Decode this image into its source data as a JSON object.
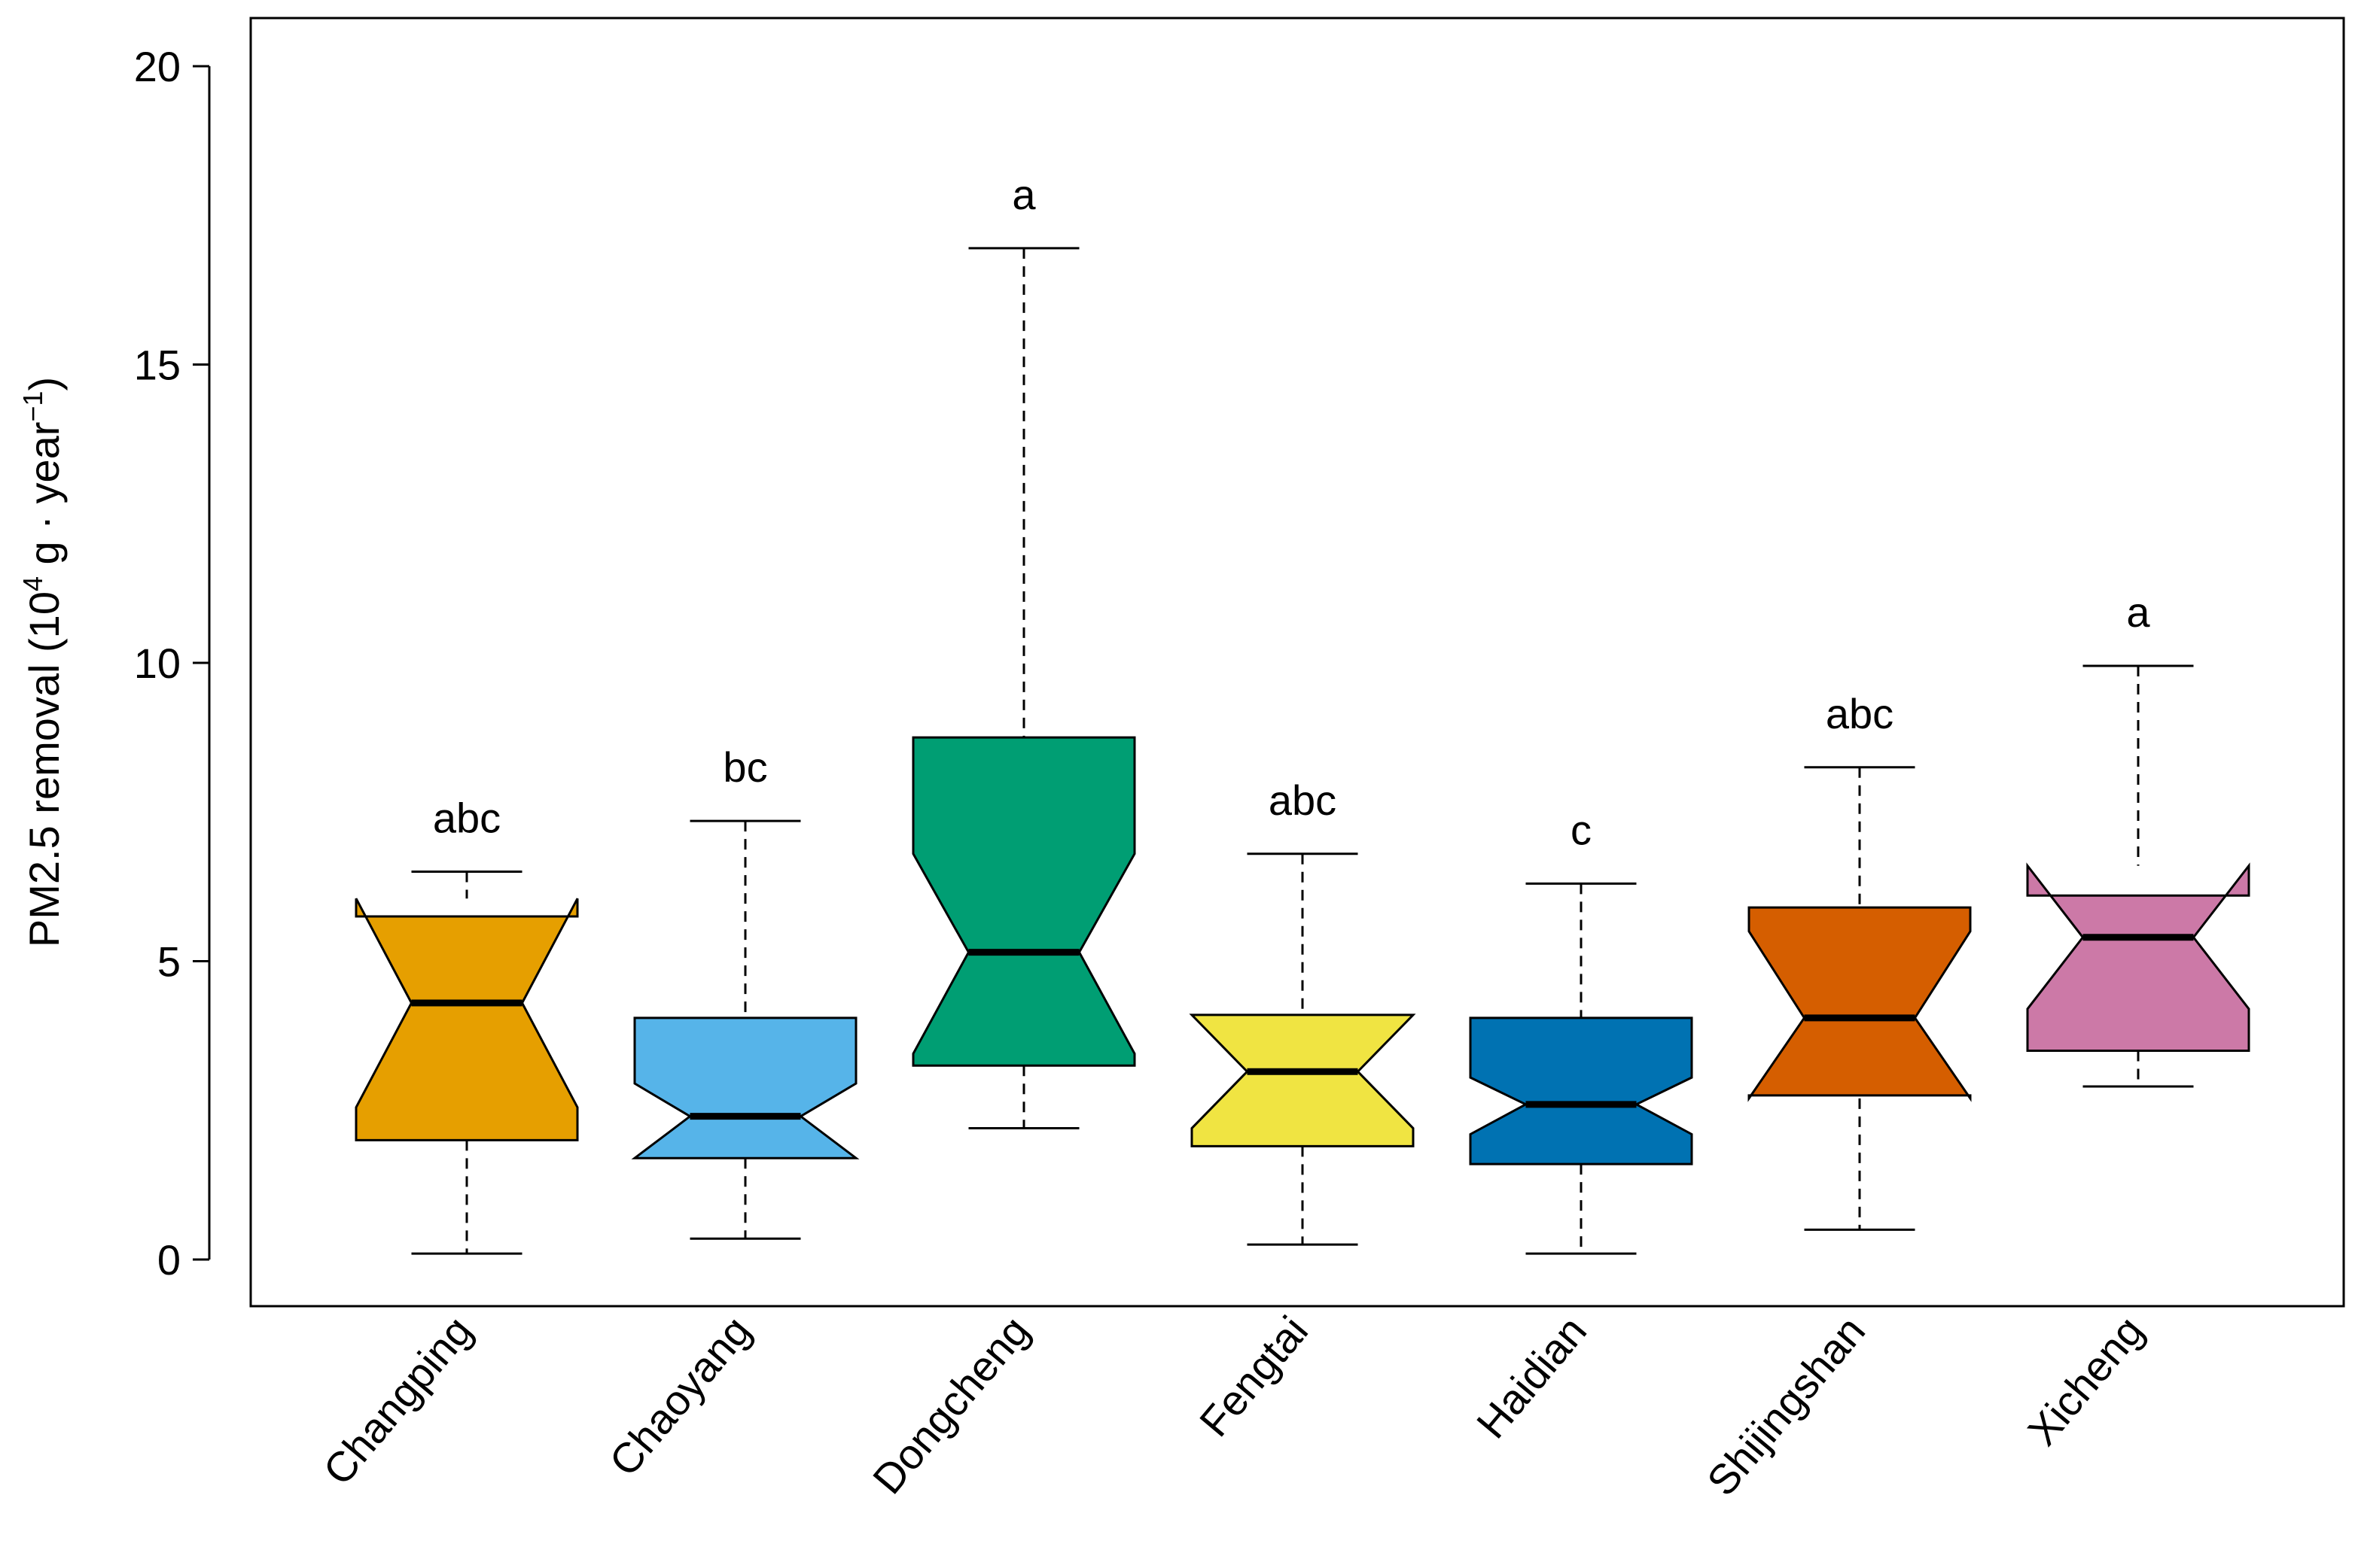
{
  "chart_data": {
    "type": "boxplot",
    "notched": true,
    "title": "",
    "xlabel": "",
    "ylabel": {
      "prefix": "PM2.5 removal (10",
      "exp1": "4",
      "middle": " g · year",
      "exp2": "−1",
      "suffix": ")"
    },
    "ylim": [
      -0.8,
      20.8
    ],
    "yticks": [
      0,
      5,
      10,
      15,
      20
    ],
    "grid": false,
    "series": [
      {
        "name": "Changping",
        "color": "#E69F00",
        "whisker_low": 0.1,
        "q1": 2.0,
        "median": 4.3,
        "q3": 5.75,
        "whisker_high": 6.5,
        "notch_low": 2.55,
        "notch_high": 6.05,
        "letter": "abc"
      },
      {
        "name": "Chaoyang",
        "color": "#56B4E9",
        "whisker_low": 0.35,
        "q1": 1.7,
        "median": 2.4,
        "q3": 4.05,
        "whisker_high": 7.35,
        "notch_low": 1.7,
        "notch_high": 2.95,
        "letter": "bc"
      },
      {
        "name": "Dongcheng",
        "color": "#009E73",
        "whisker_low": 2.2,
        "q1": 3.25,
        "median": 5.15,
        "q3": 8.75,
        "whisker_high": 16.95,
        "notch_low": 3.45,
        "notch_high": 6.8,
        "letter": "a"
      },
      {
        "name": "Fengtai",
        "color": "#F0E442",
        "whisker_low": 0.25,
        "q1": 1.9,
        "median": 3.15,
        "q3": 4.1,
        "whisker_high": 6.8,
        "notch_low": 2.2,
        "notch_high": 4.1,
        "letter": "abc"
      },
      {
        "name": "Haidian",
        "color": "#0072B2",
        "whisker_low": 0.1,
        "q1": 1.6,
        "median": 2.6,
        "q3": 4.05,
        "whisker_high": 6.3,
        "notch_low": 2.1,
        "notch_high": 3.05,
        "letter": "c"
      },
      {
        "name": "Shijingshan",
        "color": "#D55E00",
        "whisker_low": 0.5,
        "q1": 2.75,
        "median": 4.05,
        "q3": 5.9,
        "whisker_high": 8.25,
        "notch_low": 2.7,
        "notch_high": 5.5,
        "letter": "abc"
      },
      {
        "name": "Xicheng",
        "color": "#CC79A7",
        "whisker_low": 2.9,
        "q1": 3.5,
        "median": 5.4,
        "q3": 6.1,
        "whisker_high": 9.95,
        "notch_low": 4.2,
        "notch_high": 6.6,
        "letter": "a"
      }
    ]
  }
}
